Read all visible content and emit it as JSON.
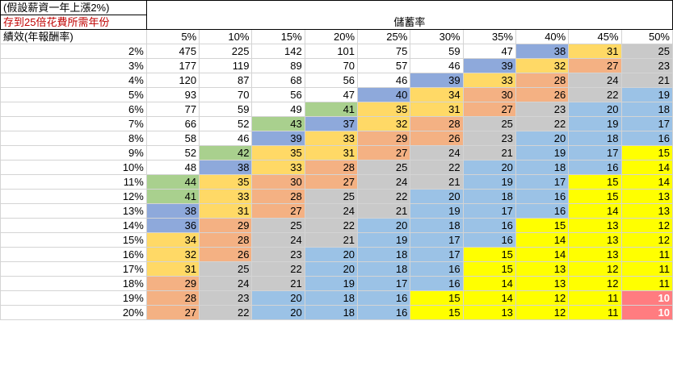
{
  "header": {
    "note1": "(假設薪資一年上漲2%)",
    "note2": "存到25倍花費所需年份",
    "savings_label": "儲蓄率",
    "performance_label": "績效(年報酬率)"
  },
  "columns": [
    "5%",
    "10%",
    "15%",
    "20%",
    "25%",
    "30%",
    "35%",
    "40%",
    "45%",
    "50%"
  ],
  "palette": {
    "green": "#a9d08e",
    "blue_dark": "#8ea9db",
    "orange": "#ffd966",
    "salmon": "#f4b183",
    "gray": "#c9c9c9",
    "light_blue": "#9bc2e6",
    "yellow": "#ffff00",
    "red": "#ff7c80",
    "white": "#ffffff"
  },
  "rows": [
    {
      "label": "2%",
      "values": [
        475,
        225,
        142,
        101,
        75,
        59,
        47,
        38,
        31,
        25
      ],
      "colors": [
        "white",
        "white",
        "white",
        "white",
        "white",
        "white",
        "white",
        "blue_dark",
        "orange",
        "gray"
      ]
    },
    {
      "label": "3%",
      "values": [
        177,
        119,
        89,
        70,
        57,
        46,
        39,
        32,
        27,
        23
      ],
      "colors": [
        "white",
        "white",
        "white",
        "white",
        "white",
        "white",
        "blue_dark",
        "orange",
        "salmon",
        "gray"
      ]
    },
    {
      "label": "4%",
      "values": [
        120,
        87,
        68,
        56,
        46,
        39,
        33,
        28,
        24,
        21
      ],
      "colors": [
        "white",
        "white",
        "white",
        "white",
        "white",
        "blue_dark",
        "orange",
        "salmon",
        "gray",
        "gray"
      ]
    },
    {
      "label": "5%",
      "values": [
        93,
        70,
        56,
        47,
        40,
        34,
        30,
        26,
        22,
        19
      ],
      "colors": [
        "white",
        "white",
        "white",
        "white",
        "blue_dark",
        "orange",
        "salmon",
        "salmon",
        "gray",
        "light_blue"
      ]
    },
    {
      "label": "6%",
      "values": [
        77,
        59,
        49,
        41,
        35,
        31,
        27,
        23,
        20,
        18
      ],
      "colors": [
        "white",
        "white",
        "white",
        "green",
        "orange",
        "orange",
        "salmon",
        "gray",
        "light_blue",
        "light_blue"
      ]
    },
    {
      "label": "7%",
      "values": [
        66,
        52,
        43,
        37,
        32,
        28,
        25,
        22,
        19,
        17
      ],
      "colors": [
        "white",
        "white",
        "green",
        "blue_dark",
        "orange",
        "salmon",
        "gray",
        "gray",
        "light_blue",
        "light_blue"
      ]
    },
    {
      "label": "8%",
      "values": [
        58,
        46,
        39,
        33,
        29,
        26,
        23,
        20,
        18,
        16
      ],
      "colors": [
        "white",
        "white",
        "blue_dark",
        "orange",
        "salmon",
        "salmon",
        "gray",
        "light_blue",
        "light_blue",
        "light_blue"
      ]
    },
    {
      "label": "9%",
      "values": [
        52,
        42,
        35,
        31,
        27,
        24,
        21,
        19,
        17,
        15
      ],
      "colors": [
        "white",
        "green",
        "orange",
        "orange",
        "salmon",
        "gray",
        "gray",
        "light_blue",
        "light_blue",
        "yellow"
      ]
    },
    {
      "label": "10%",
      "values": [
        48,
        38,
        33,
        28,
        25,
        22,
        20,
        18,
        16,
        14
      ],
      "colors": [
        "white",
        "blue_dark",
        "orange",
        "salmon",
        "gray",
        "gray",
        "light_blue",
        "light_blue",
        "light_blue",
        "yellow"
      ]
    },
    {
      "label": "11%",
      "values": [
        44,
        35,
        30,
        27,
        24,
        21,
        19,
        17,
        15,
        14
      ],
      "colors": [
        "green",
        "orange",
        "salmon",
        "salmon",
        "gray",
        "gray",
        "light_blue",
        "light_blue",
        "yellow",
        "yellow"
      ]
    },
    {
      "label": "12%",
      "values": [
        41,
        33,
        28,
        25,
        22,
        20,
        18,
        16,
        15,
        13
      ],
      "colors": [
        "green",
        "orange",
        "salmon",
        "gray",
        "gray",
        "light_blue",
        "light_blue",
        "light_blue",
        "yellow",
        "yellow"
      ]
    },
    {
      "label": "13%",
      "values": [
        38,
        31,
        27,
        24,
        21,
        19,
        17,
        16,
        14,
        13
      ],
      "colors": [
        "blue_dark",
        "orange",
        "salmon",
        "gray",
        "gray",
        "light_blue",
        "light_blue",
        "light_blue",
        "yellow",
        "yellow"
      ]
    },
    {
      "label": "14%",
      "values": [
        36,
        29,
        25,
        22,
        20,
        18,
        16,
        15,
        13,
        12
      ],
      "colors": [
        "blue_dark",
        "salmon",
        "gray",
        "gray",
        "light_blue",
        "light_blue",
        "light_blue",
        "yellow",
        "yellow",
        "yellow"
      ]
    },
    {
      "label": "15%",
      "values": [
        34,
        28,
        24,
        21,
        19,
        17,
        16,
        14,
        13,
        12
      ],
      "colors": [
        "orange",
        "salmon",
        "gray",
        "gray",
        "light_blue",
        "light_blue",
        "light_blue",
        "yellow",
        "yellow",
        "yellow"
      ]
    },
    {
      "label": "16%",
      "values": [
        32,
        26,
        23,
        20,
        18,
        17,
        15,
        14,
        13,
        11
      ],
      "colors": [
        "orange",
        "salmon",
        "gray",
        "light_blue",
        "light_blue",
        "light_blue",
        "yellow",
        "yellow",
        "yellow",
        "yellow"
      ]
    },
    {
      "label": "17%",
      "values": [
        31,
        25,
        22,
        20,
        18,
        16,
        15,
        13,
        12,
        11
      ],
      "colors": [
        "orange",
        "gray",
        "gray",
        "light_blue",
        "light_blue",
        "light_blue",
        "yellow",
        "yellow",
        "yellow",
        "yellow"
      ]
    },
    {
      "label": "18%",
      "values": [
        29,
        24,
        21,
        19,
        17,
        16,
        14,
        13,
        12,
        11
      ],
      "colors": [
        "salmon",
        "gray",
        "gray",
        "light_blue",
        "light_blue",
        "light_blue",
        "yellow",
        "yellow",
        "yellow",
        "yellow"
      ]
    },
    {
      "label": "19%",
      "values": [
        28,
        23,
        20,
        18,
        16,
        15,
        14,
        12,
        11,
        10
      ],
      "colors": [
        "salmon",
        "gray",
        "light_blue",
        "light_blue",
        "light_blue",
        "yellow",
        "yellow",
        "yellow",
        "yellow",
        "red"
      ]
    },
    {
      "label": "20%",
      "values": [
        27,
        22,
        20,
        18,
        16,
        15,
        13,
        12,
        11,
        10
      ],
      "colors": [
        "salmon",
        "gray",
        "light_blue",
        "light_blue",
        "light_blue",
        "yellow",
        "yellow",
        "yellow",
        "yellow",
        "red"
      ]
    }
  ]
}
